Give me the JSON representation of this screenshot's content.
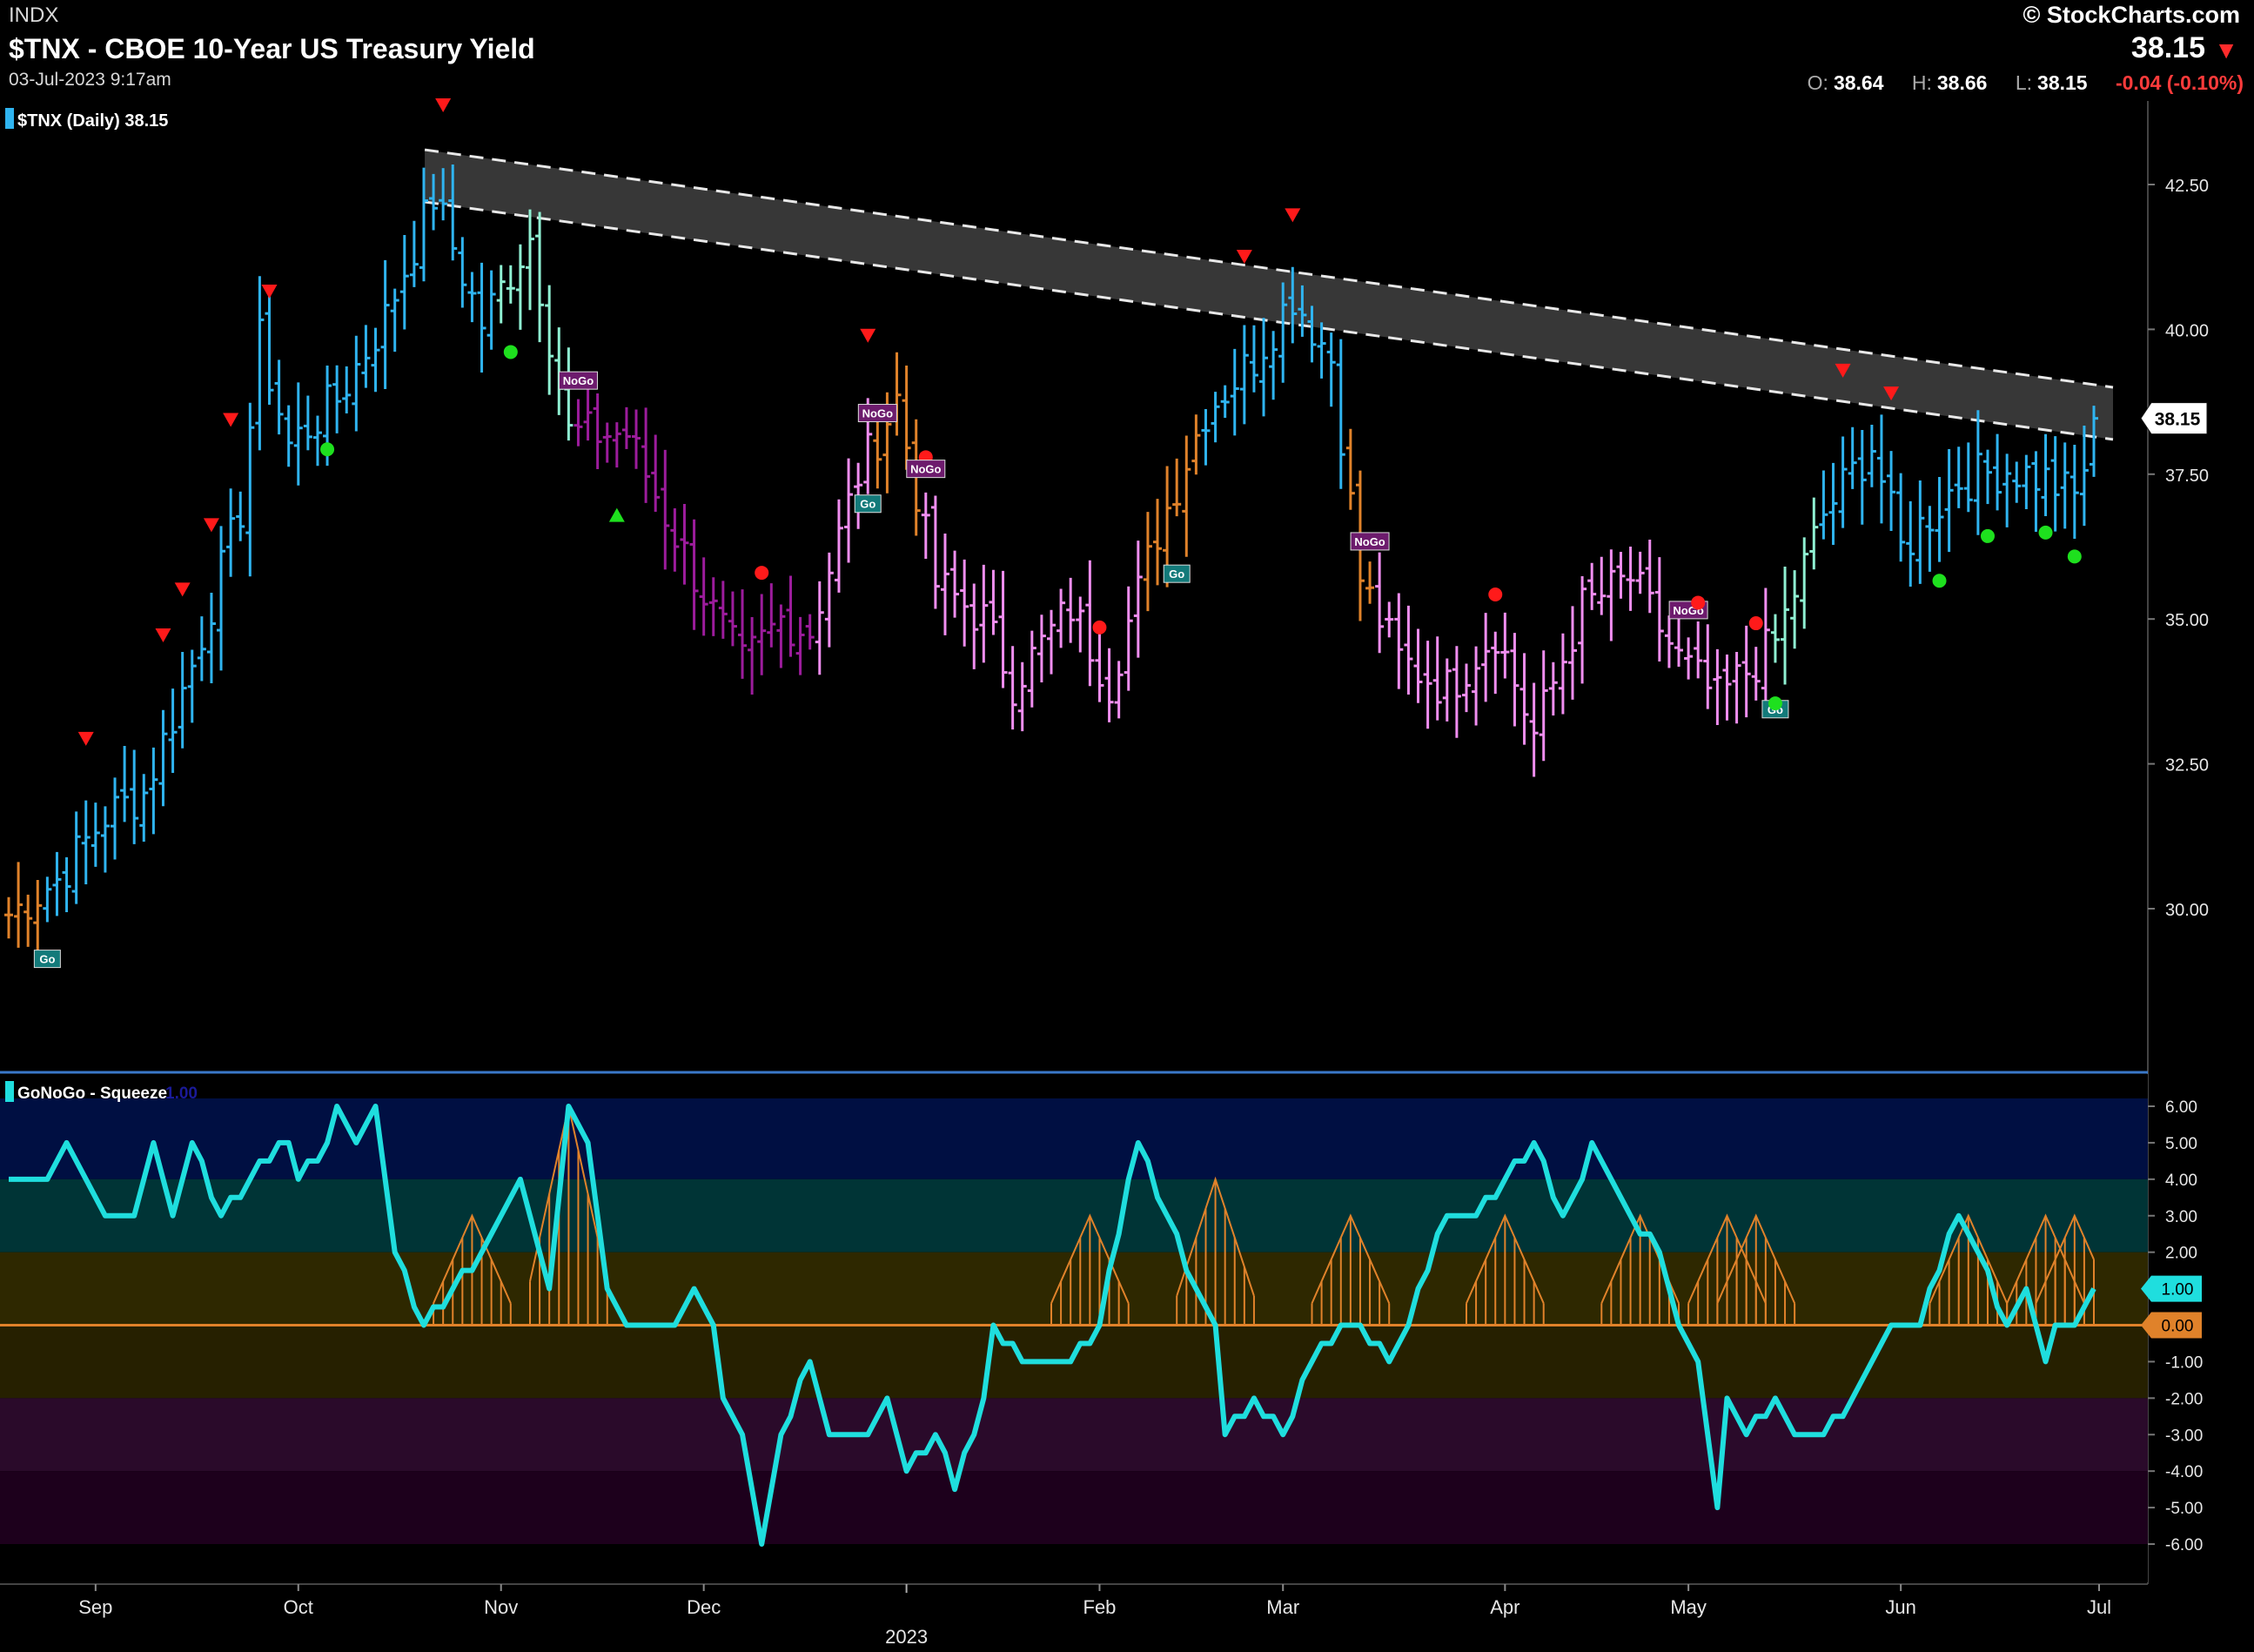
{
  "header": {
    "exchange": "INDX",
    "title": "$TNX - CBOE 10-Year US Treasury Yield",
    "datetime": "03-Jul-2023 9:17am",
    "brand": "© StockCharts.com",
    "last": "38.15",
    "ohlc": {
      "o_label": "O:",
      "o_value": "38.64",
      "h_label": "H:",
      "h_value": "38.66",
      "l_label": "L:",
      "l_value": "38.15",
      "change": "-0.04 (-0.10%)"
    }
  },
  "colors": {
    "go_strong": "#2fb4f0",
    "go_weak": "#8ff0d2",
    "nogo_weak": "#f08ef0",
    "nogo_strong": "#9c1c9c",
    "neutral": "#e0822a",
    "oscillator": "#1fdede",
    "squeeze": "#e0822a",
    "signal_red": "#ff1a1a",
    "signal_green": "#1ee01e"
  },
  "chart_data": [
    {
      "type": "bar",
      "subtype": "ohlc",
      "legend": "$TNX (Daily) 38.15",
      "last_value_label": "38.15",
      "y_ticks": [
        "42.50",
        "40.00",
        "37.50",
        "35.00",
        "32.50",
        "30.00"
      ],
      "ylim": [
        26.5,
        43.5
      ],
      "x_ticks": [
        "Sep",
        "Oct",
        "Nov",
        "Dec",
        "Feb",
        "Mar",
        "Apr",
        "May",
        "Jun",
        "Jul"
      ],
      "x_year_label": "2023",
      "resistance_band": {
        "start": {
          "date": "2022-10-21",
          "upper": 43.1,
          "lower": 42.2
        },
        "end": {
          "date": "2023-06-30",
          "upper": 39.0,
          "lower": 38.1
        }
      },
      "anchors": [
        {
          "date": "2022-08-19",
          "close": 29.9
        },
        {
          "date": "2022-08-26",
          "close": 30.5
        },
        {
          "date": "2022-09-02",
          "close": 31.6
        },
        {
          "date": "2022-09-09",
          "close": 32.0
        },
        {
          "date": "2022-09-16",
          "close": 34.2
        },
        {
          "date": "2022-09-23",
          "close": 36.9
        },
        {
          "date": "2022-09-27",
          "close": 39.8
        },
        {
          "date": "2022-09-30",
          "close": 38.0
        },
        {
          "date": "2022-10-07",
          "close": 38.8
        },
        {
          "date": "2022-10-14",
          "close": 40.2
        },
        {
          "date": "2022-10-21",
          "close": 42.3
        },
        {
          "date": "2022-10-28",
          "close": 40.1
        },
        {
          "date": "2022-11-04",
          "close": 41.6
        },
        {
          "date": "2022-11-10",
          "close": 38.2
        },
        {
          "date": "2022-11-18",
          "close": 38.2
        },
        {
          "date": "2022-11-25",
          "close": 36.8
        },
        {
          "date": "2022-12-02",
          "close": 35.1
        },
        {
          "date": "2022-12-07",
          "close": 34.2
        },
        {
          "date": "2022-12-13",
          "close": 35.0
        },
        {
          "date": "2022-12-16",
          "close": 34.8
        },
        {
          "date": "2022-12-23",
          "close": 37.5
        },
        {
          "date": "2022-12-30",
          "close": 38.8
        },
        {
          "date": "2023-01-06",
          "close": 35.6
        },
        {
          "date": "2023-01-13",
          "close": 35.0
        },
        {
          "date": "2023-01-19",
          "close": 33.9
        },
        {
          "date": "2023-01-27",
          "close": 35.2
        },
        {
          "date": "2023-02-02",
          "close": 33.9
        },
        {
          "date": "2023-02-09",
          "close": 36.5
        },
        {
          "date": "2023-02-16",
          "close": 38.6
        },
        {
          "date": "2023-02-24",
          "close": 39.5
        },
        {
          "date": "2023-03-02",
          "close": 40.6
        },
        {
          "date": "2023-03-08",
          "close": 39.5
        },
        {
          "date": "2023-03-13",
          "close": 35.7
        },
        {
          "date": "2023-03-17",
          "close": 34.3
        },
        {
          "date": "2023-03-24",
          "close": 33.8
        },
        {
          "date": "2023-03-31",
          "close": 34.8
        },
        {
          "date": "2023-04-06",
          "close": 33.0
        },
        {
          "date": "2023-04-14",
          "close": 35.2
        },
        {
          "date": "2023-04-21",
          "close": 35.7
        },
        {
          "date": "2023-04-28",
          "close": 34.3
        },
        {
          "date": "2023-05-04",
          "close": 33.6
        },
        {
          "date": "2023-05-12",
          "close": 34.6
        },
        {
          "date": "2023-05-19",
          "close": 36.8
        },
        {
          "date": "2023-05-26",
          "close": 38.0
        },
        {
          "date": "2023-06-01",
          "close": 36.2
        },
        {
          "date": "2023-06-09",
          "close": 37.4
        },
        {
          "date": "2023-06-16",
          "close": 37.6
        },
        {
          "date": "2023-06-23",
          "close": 37.4
        },
        {
          "date": "2023-06-28",
          "close": 37.1
        },
        {
          "date": "2023-06-30",
          "close": 38.2
        }
      ],
      "color_regimes": [
        {
          "from": "2022-08-19",
          "to": "2022-08-24",
          "color": "neutral"
        },
        {
          "from": "2022-08-25",
          "to": "2022-10-31",
          "color": "go_strong"
        },
        {
          "from": "2022-11-01",
          "to": "2022-11-10",
          "color": "go_weak"
        },
        {
          "from": "2022-11-11",
          "to": "2022-11-23",
          "color": "nogo_strong"
        },
        {
          "from": "2022-11-24",
          "to": "2022-12-16",
          "color": "nogo_strong"
        },
        {
          "from": "2022-12-17",
          "to": "2022-12-27",
          "color": "nogo_weak"
        },
        {
          "from": "2022-12-28",
          "to": "2023-01-04",
          "color": "neutral"
        },
        {
          "from": "2023-01-05",
          "to": "2023-02-07",
          "color": "nogo_weak"
        },
        {
          "from": "2023-02-08",
          "to": "2023-02-15",
          "color": "neutral"
        },
        {
          "from": "2023-02-16",
          "to": "2023-03-09",
          "color": "go_strong"
        },
        {
          "from": "2023-03-10",
          "to": "2023-03-14",
          "color": "neutral"
        },
        {
          "from": "2023-03-15",
          "to": "2023-04-14",
          "color": "nogo_weak"
        },
        {
          "from": "2023-04-15",
          "to": "2023-05-11",
          "color": "nogo_weak"
        },
        {
          "from": "2023-05-12",
          "to": "2023-05-18",
          "color": "go_weak"
        },
        {
          "from": "2023-05-19",
          "to": "2023-06-30",
          "color": "go_strong"
        }
      ],
      "signals": [
        {
          "date": "2022-08-25",
          "type": "go_label",
          "text": "Go"
        },
        {
          "date": "2022-08-31",
          "type": "red_triangle"
        },
        {
          "date": "2022-09-13",
          "type": "red_triangle"
        },
        {
          "date": "2022-09-15",
          "type": "red_triangle"
        },
        {
          "date": "2022-09-20",
          "type": "red_triangle"
        },
        {
          "date": "2022-09-22",
          "type": "red_triangle"
        },
        {
          "date": "2022-09-28",
          "type": "red_triangle"
        },
        {
          "date": "2022-10-06",
          "type": "green_dot"
        },
        {
          "date": "2022-10-24",
          "type": "red_triangle"
        },
        {
          "date": "2022-11-02",
          "type": "green_dot"
        },
        {
          "date": "2022-11-11",
          "type": "nogo_label",
          "text": "NoGo"
        },
        {
          "date": "2022-11-17",
          "type": "green_triangle"
        },
        {
          "date": "2022-12-09",
          "type": "red_dot"
        },
        {
          "date": "2022-12-27",
          "type": "red_triangle"
        },
        {
          "date": "2022-12-28",
          "type": "nogo_label",
          "text": "NoGo"
        },
        {
          "date": "2022-12-27",
          "type": "go_label",
          "text": "Go"
        },
        {
          "date": "2023-01-05",
          "type": "red_dot"
        },
        {
          "date": "2023-01-05",
          "type": "nogo_label",
          "text": "NoGo"
        },
        {
          "date": "2023-02-01",
          "type": "red_dot"
        },
        {
          "date": "2023-02-13",
          "type": "go_label",
          "text": "Go"
        },
        {
          "date": "2023-02-23",
          "type": "red_triangle"
        },
        {
          "date": "2023-03-02",
          "type": "red_triangle"
        },
        {
          "date": "2023-03-14",
          "type": "nogo_label",
          "text": "NoGo"
        },
        {
          "date": "2023-03-31",
          "type": "red_dot"
        },
        {
          "date": "2023-05-01",
          "type": "nogo_label",
          "text": "NoGo"
        },
        {
          "date": "2023-05-02",
          "type": "red_dot"
        },
        {
          "date": "2023-05-10",
          "type": "red_dot"
        },
        {
          "date": "2023-05-12",
          "type": "go_label",
          "text": "Go"
        },
        {
          "date": "2023-05-12",
          "type": "green_dot"
        },
        {
          "date": "2023-05-23",
          "type": "red_triangle"
        },
        {
          "date": "2023-05-31",
          "type": "red_triangle"
        },
        {
          "date": "2023-06-07",
          "type": "green_dot"
        },
        {
          "date": "2023-06-14",
          "type": "green_dot"
        },
        {
          "date": "2023-06-23",
          "type": "green_dot"
        },
        {
          "date": "2023-06-28",
          "type": "green_dot"
        }
      ]
    },
    {
      "type": "line",
      "legend": "GoNoGo - Squeeze",
      "legend_value": "1.00",
      "y_ticks": [
        "6.00",
        "5.00",
        "4.00",
        "3.00",
        "2.00",
        "1.00",
        "0.00",
        "-1.00",
        "-2.00",
        "-3.00",
        "-4.00",
        "-5.00",
        "-6.00"
      ],
      "ylim": [
        -6.2,
        7.0
      ],
      "last_value_label": "1.00",
      "zero_label": "0.00",
      "zones": [
        {
          "from": 4,
          "to": 7,
          "color": "#000f42"
        },
        {
          "from": 2,
          "to": 4,
          "color": "#003436"
        },
        {
          "from": 0,
          "to": 2,
          "color": "#2e2800"
        },
        {
          "from": -2,
          "to": 0,
          "color": "#262000"
        },
        {
          "from": -4,
          "to": -2,
          "color": "#2a0a2a"
        },
        {
          "from": -6.2,
          "to": -4,
          "color": "#1d001c"
        }
      ],
      "series": [
        {
          "name": "GoNoGo",
          "anchors": [
            {
              "date": "2022-08-19",
              "value": 3.8
            },
            {
              "date": "2022-08-25",
              "value": 4.0
            },
            {
              "date": "2022-08-29",
              "value": 5.0
            },
            {
              "date": "2022-09-02",
              "value": 3.0
            },
            {
              "date": "2022-09-08",
              "value": 3.0
            },
            {
              "date": "2022-09-12",
              "value": 5.0
            },
            {
              "date": "2022-09-14",
              "value": 3.0
            },
            {
              "date": "2022-09-16",
              "value": 5.0
            },
            {
              "date": "2022-09-21",
              "value": 3.0
            },
            {
              "date": "2022-09-26",
              "value": 4.0
            },
            {
              "date": "2022-09-30",
              "value": 5.0
            },
            {
              "date": "2022-10-03",
              "value": 4.0
            },
            {
              "date": "2022-10-06",
              "value": 5.0
            },
            {
              "date": "2022-10-07",
              "value": 6.0
            },
            {
              "date": "2022-10-11",
              "value": 5.0
            },
            {
              "date": "2022-10-13",
              "value": 6.0
            },
            {
              "date": "2022-10-17",
              "value": 2.0
            },
            {
              "date": "2022-10-20",
              "value": 0.0
            },
            {
              "date": "2022-10-25",
              "value": 1.0
            },
            {
              "date": "2022-10-28",
              "value": 2.0
            },
            {
              "date": "2022-11-03",
              "value": 4.0
            },
            {
              "date": "2022-11-08",
              "value": 1.0
            },
            {
              "date": "2022-11-10",
              "value": 6.0
            },
            {
              "date": "2022-11-14",
              "value": 5.0
            },
            {
              "date": "2022-11-16",
              "value": 1.0
            },
            {
              "date": "2022-11-18",
              "value": 0.0
            },
            {
              "date": "2022-11-28",
              "value": 0.0
            },
            {
              "date": "2022-11-30",
              "value": 1.0
            },
            {
              "date": "2022-12-02",
              "value": 0.0
            },
            {
              "date": "2022-12-05",
              "value": -2.0
            },
            {
              "date": "2022-12-07",
              "value": -3.0
            },
            {
              "date": "2022-12-09",
              "value": -5.8
            },
            {
              "date": "2022-12-13",
              "value": -3.0
            },
            {
              "date": "2022-12-16",
              "value": -1.0
            },
            {
              "date": "2022-12-20",
              "value": -3.0
            },
            {
              "date": "2022-12-27",
              "value": -3.0
            },
            {
              "date": "2022-12-29",
              "value": -2.0
            },
            {
              "date": "2023-01-03",
              "value": -4.0
            },
            {
              "date": "2023-01-06",
              "value": -3.0
            },
            {
              "date": "2023-01-10",
              "value": -4.5
            },
            {
              "date": "2023-01-13",
              "value": -2.0
            },
            {
              "date": "2023-01-17",
              "value": 0.0
            },
            {
              "date": "2023-01-20",
              "value": -1.0
            },
            {
              "date": "2023-01-27",
              "value": -1.0
            },
            {
              "date": "2023-02-01",
              "value": 0.0
            },
            {
              "date": "2023-02-07",
              "value": 5.0
            },
            {
              "date": "2023-02-10",
              "value": 3.0
            },
            {
              "date": "2023-02-15",
              "value": 1.0
            },
            {
              "date": "2023-02-17",
              "value": 0.0
            },
            {
              "date": "2023-02-21",
              "value": -3.0
            },
            {
              "date": "2023-02-24",
              "value": -2.0
            },
            {
              "date": "2023-03-01",
              "value": -3.0
            },
            {
              "date": "2023-03-06",
              "value": -1.0
            },
            {
              "date": "2023-03-09",
              "value": 0.0
            },
            {
              "date": "2023-03-13",
              "value": 0.0
            },
            {
              "date": "2023-03-16",
              "value": -1.0
            },
            {
              "date": "2023-03-20",
              "value": 0.0
            },
            {
              "date": "2023-03-24",
              "value": 3.0
            },
            {
              "date": "2023-03-29",
              "value": 3.0
            },
            {
              "date": "2023-04-03",
              "value": 4.0
            },
            {
              "date": "2023-04-07",
              "value": 5.0
            },
            {
              "date": "2023-04-12",
              "value": 3.0
            },
            {
              "date": "2023-04-14",
              "value": 4.0
            },
            {
              "date": "2023-04-17",
              "value": 5.0
            },
            {
              "date": "2023-04-21",
              "value": 3.0
            },
            {
              "date": "2023-04-26",
              "value": 2.0
            },
            {
              "date": "2023-04-28",
              "value": 0.0
            },
            {
              "date": "2023-05-02",
              "value": -1.0
            },
            {
              "date": "2023-05-04",
              "value": -5.0
            },
            {
              "date": "2023-05-05",
              "value": -2.0
            },
            {
              "date": "2023-05-09",
              "value": -3.0
            },
            {
              "date": "2023-05-12",
              "value": -2.0
            },
            {
              "date": "2023-05-16",
              "value": -3.0
            },
            {
              "date": "2023-05-19",
              "value": -3.0
            },
            {
              "date": "2023-05-24",
              "value": -2.0
            },
            {
              "date": "2023-05-26",
              "value": -1.0
            },
            {
              "date": "2023-05-31",
              "value": 0.0
            },
            {
              "date": "2023-06-05",
              "value": 0.0
            },
            {
              "date": "2023-06-09",
              "value": 3.0
            },
            {
              "date": "2023-06-13",
              "value": 2.0
            },
            {
              "date": "2023-06-16",
              "value": 0.0
            },
            {
              "date": "2023-06-21",
              "value": 1.0
            },
            {
              "date": "2023-06-23",
              "value": -1.0
            },
            {
              "date": "2023-06-26",
              "value": 0.0
            },
            {
              "date": "2023-06-28",
              "value": 0.0
            },
            {
              "date": "2023-06-30",
              "value": 1.0
            }
          ]
        }
      ]
    }
  ]
}
